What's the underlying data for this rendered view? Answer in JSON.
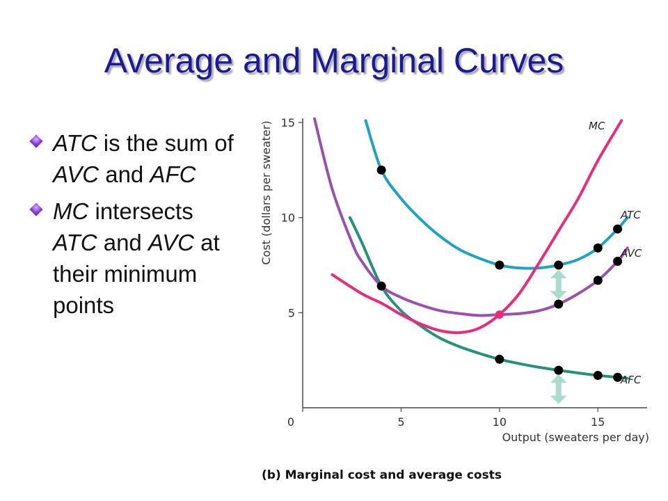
{
  "title": "Average and Marginal Curves",
  "bullets": [
    {
      "parts": [
        {
          "t": "ATC",
          "i": true
        },
        {
          "t": " is the sum of ",
          "i": false
        },
        {
          "t": "AVC",
          "i": true
        },
        {
          "t": " and ",
          "i": false
        },
        {
          "t": "AFC",
          "i": true
        }
      ]
    },
    {
      "parts": [
        {
          "t": "MC",
          "i": true
        },
        {
          "t": " intersects ",
          "i": false
        },
        {
          "t": "ATC",
          "i": true
        },
        {
          "t": " and ",
          "i": false
        },
        {
          "t": "AVC",
          "i": true
        },
        {
          "t": " at their minimum points",
          "i": false
        }
      ]
    }
  ],
  "colors": {
    "ATC": "#1ea3c8",
    "AVC": "#9b50b0",
    "MC": "#ec2a7c",
    "AFC": "#22937a",
    "arrow": "#a9dccd",
    "title": "#1a1a99"
  },
  "chart_data": {
    "type": "line",
    "caption": "(b) Marginal cost and average costs",
    "xlabel": "Output (sweaters per day)",
    "ylabel": "Cost (dollars per sweater)",
    "xlim": [
      0,
      17.5
    ],
    "ylim": [
      0,
      15
    ],
    "xticks": [
      0,
      5,
      10,
      15
    ],
    "yticks": [
      5,
      10,
      15
    ],
    "grid": false,
    "series": [
      {
        "name": "MC",
        "color": "#ec2a7c",
        "x": [
          1.5,
          3,
          4,
          5,
          6,
          7,
          8,
          9,
          10,
          11,
          12,
          13,
          14,
          15,
          16.2
        ],
        "y": [
          7.0,
          6.0,
          5.5,
          4.9,
          4.4,
          4.05,
          3.95,
          4.2,
          4.9,
          6.0,
          7.6,
          9.3,
          11.0,
          13.0,
          15.1
        ]
      },
      {
        "name": "ATC",
        "color": "#1ea3c8",
        "x": [
          3.2,
          4,
          5,
          6,
          7,
          8,
          9,
          10,
          11,
          12,
          13,
          14,
          15,
          16,
          16.5
        ],
        "y": [
          15.1,
          12.5,
          11.0,
          9.9,
          9.0,
          8.3,
          7.85,
          7.5,
          7.35,
          7.35,
          7.5,
          7.8,
          8.4,
          9.4,
          10.0
        ]
      },
      {
        "name": "AVC",
        "color": "#9b50b0",
        "x": [
          0.6,
          1.5,
          2.5,
          3,
          4,
          5,
          6,
          7,
          8,
          9,
          10,
          11,
          12,
          13,
          14,
          15,
          16,
          16.5
        ],
        "y": [
          15.2,
          11.5,
          8.7,
          7.7,
          6.4,
          5.8,
          5.4,
          5.1,
          4.95,
          4.85,
          4.9,
          4.95,
          5.1,
          5.45,
          6.0,
          6.7,
          7.7,
          8.4
        ]
      },
      {
        "name": "AFC",
        "color": "#22937a",
        "x": [
          2.4,
          3,
          4,
          5,
          6,
          7,
          8,
          9,
          10,
          11,
          12,
          13,
          14,
          15,
          16,
          16.5
        ],
        "y": [
          10.0,
          8.7,
          6.4,
          5.1,
          4.3,
          3.65,
          3.2,
          2.85,
          2.55,
          2.32,
          2.13,
          1.97,
          1.83,
          1.7,
          1.6,
          1.55
        ]
      }
    ],
    "points": [
      {
        "series": "ATC",
        "x": 4,
        "y": 12.5
      },
      {
        "series": "ATC",
        "x": 10,
        "y": 7.5
      },
      {
        "series": "ATC",
        "x": 13,
        "y": 7.5
      },
      {
        "series": "ATC",
        "x": 15,
        "y": 8.4
      },
      {
        "series": "ATC",
        "x": 16,
        "y": 9.4
      },
      {
        "series": "AVC",
        "x": 4,
        "y": 6.4
      },
      {
        "series": "AVC",
        "x": 13,
        "y": 5.45
      },
      {
        "series": "AVC",
        "x": 15,
        "y": 6.7
      },
      {
        "series": "AVC",
        "x": 16,
        "y": 7.7
      },
      {
        "series": "AFC",
        "x": 10,
        "y": 2.55
      },
      {
        "series": "AFC",
        "x": 13,
        "y": 1.97
      },
      {
        "series": "AFC",
        "x": 15,
        "y": 1.7
      },
      {
        "series": "AFC",
        "x": 16,
        "y": 1.6
      },
      {
        "series": "MC",
        "x": 10,
        "y": 4.9,
        "highlight": true
      }
    ],
    "arrows": [
      {
        "x": 13,
        "y_from": 5.7,
        "y_to": 7.25
      },
      {
        "x": 13,
        "y_from": 0.2,
        "y_to": 1.75
      }
    ]
  }
}
